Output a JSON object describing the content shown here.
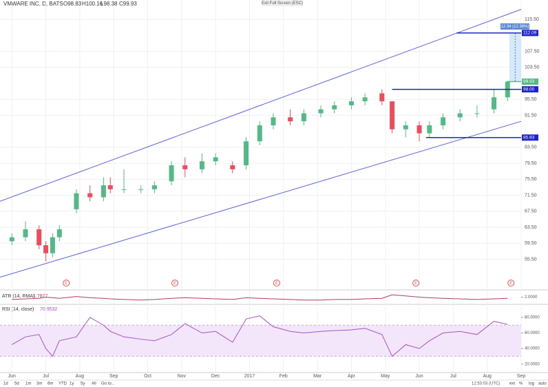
{
  "chart_data": [
    {
      "type": "candlestick",
      "title": "VMWARE INC, D, BATS",
      "ohlc_legend": [
        "O98.83",
        "H100.16",
        "L98.38",
        "C99.93"
      ],
      "x": [
        0,
        0.4,
        0.8,
        1.0,
        1.2,
        1.4,
        1.9,
        2.3,
        2.7,
        2.9,
        3.3,
        3.8,
        4.2,
        4.7,
        5.1,
        5.6,
        6.0,
        6.5,
        6.9,
        7.3,
        7.7,
        8.2,
        8.6,
        9.1,
        9.5,
        10.0,
        10.4,
        10.9,
        11.2,
        11.6,
        12.0,
        12.3,
        12.7,
        13.2,
        13.7,
        14.2,
        14.6
      ],
      "open": [
        60,
        61,
        63,
        59,
        57,
        61,
        68,
        72,
        71,
        74,
        73,
        73,
        73,
        75,
        79,
        78,
        80,
        79,
        79,
        85,
        89,
        91,
        90,
        92,
        93,
        94,
        95,
        97,
        95,
        88,
        89,
        87,
        89,
        91,
        92,
        93,
        96
      ],
      "high": [
        62,
        65,
        64,
        60,
        62,
        64,
        73,
        74,
        76,
        76,
        78,
        74,
        75,
        80,
        81,
        82,
        82,
        80,
        86,
        90,
        92,
        93,
        93,
        94,
        95,
        96,
        97,
        98,
        95,
        90,
        90,
        90,
        92,
        93,
        94,
        98,
        100.16
      ],
      "low": [
        59,
        60,
        58,
        55,
        56,
        60,
        67,
        70,
        70,
        72,
        72,
        72,
        72,
        74,
        76,
        77,
        79,
        77,
        78,
        84,
        88,
        89,
        89,
        91,
        92,
        93,
        94,
        94,
        87,
        86,
        85,
        86,
        88,
        90,
        91,
        92,
        95
      ],
      "close": [
        61,
        63,
        59,
        57,
        61,
        63,
        72,
        71,
        74,
        73,
        73,
        73,
        74,
        79,
        78,
        80,
        81,
        78,
        85,
        89,
        91,
        90,
        92,
        93,
        94,
        95,
        96,
        95,
        88,
        89,
        87,
        89,
        91,
        92,
        92,
        96,
        99.93
      ],
      "up_color": "#53b987",
      "down_color": "#eb4d5c",
      "xlim": [
        -0.35,
        15.0
      ],
      "xticks": [
        {
          "value": 0,
          "label": "Jun"
        },
        {
          "value": 1,
          "label": "Jul"
        },
        {
          "value": 2,
          "label": "Aug"
        },
        {
          "value": 3,
          "label": "Sep"
        },
        {
          "value": 4,
          "label": "Oct"
        },
        {
          "value": 5,
          "label": "Nov"
        },
        {
          "value": 6,
          "label": "Dec"
        },
        {
          "value": 7,
          "label": "2017"
        },
        {
          "value": 8,
          "label": "Feb"
        },
        {
          "value": 9,
          "label": "Mar"
        },
        {
          "value": 10,
          "label": "Apr"
        },
        {
          "value": 11,
          "label": "May"
        },
        {
          "value": 12,
          "label": "Jun"
        },
        {
          "value": 13,
          "label": "Jul"
        },
        {
          "value": 14,
          "label": "Aug"
        },
        {
          "value": 15,
          "label": "Sep"
        }
      ],
      "ylim": [
        48,
        120
      ],
      "yticks": [
        {
          "value": 55.5,
          "label": "55.50"
        },
        {
          "value": 59.5,
          "label": "59.50"
        },
        {
          "value": 63.5,
          "label": "63.50"
        },
        {
          "value": 67.5,
          "label": "67.50"
        },
        {
          "value": 71.5,
          "label": "71.50"
        },
        {
          "value": 75.5,
          "label": "75.50"
        },
        {
          "value": 79.5,
          "label": "79.50"
        },
        {
          "value": 83.5,
          "label": "83.50"
        },
        {
          "value": 91.5,
          "label": "91.50"
        },
        {
          "value": 95.5,
          "label": "95.50"
        },
        {
          "value": 103.5,
          "label": "103.50"
        },
        {
          "value": 107.5,
          "label": "107.50"
        },
        {
          "value": 115.5,
          "label": "115.50"
        }
      ],
      "grid": true,
      "levels": [
        {
          "value": 112.09,
          "label": "112.09",
          "x": [
            13.1,
            15.0
          ],
          "color": "#1e22c8"
        },
        {
          "value": 98,
          "label": "98.00",
          "x": [
            11.2,
            15.0
          ],
          "color": "#1e22c8"
        },
        {
          "value": 85.93,
          "label": "85.93",
          "x": [
            12.2,
            15.0
          ],
          "color": "#1e22c8"
        },
        {
          "value": 99.93,
          "label": "99.93",
          "x": [
            14.6,
            15.0
          ],
          "color": "#53b987"
        }
      ],
      "trendlines": [
        {
          "x": [
            -0.35,
            15.0
          ],
          "y": [
            70,
            118
          ],
          "color": "#5b5fe0"
        },
        {
          "x": [
            -0.35,
            15.0
          ],
          "y": [
            51,
            90
          ],
          "color": "#5b5fe0"
        }
      ],
      "forecast": {
        "label": "12.34 (12.36%)",
        "x": [
          14.65,
          15.0
        ]
      },
      "earnings_x": [
        1.6,
        4.8,
        7.8,
        11.9,
        14.7
      ]
    },
    {
      "type": "line",
      "title": "ATR (14, RMA)",
      "last_value": 1.7877,
      "color": "#b23a5e",
      "x": [
        0,
        0.4,
        0.8,
        1.0,
        1.2,
        1.4,
        1.9,
        2.3,
        2.7,
        2.9,
        3.3,
        3.8,
        4.2,
        4.7,
        5.1,
        5.6,
        6.0,
        6.5,
        6.9,
        7.3,
        7.7,
        8.2,
        8.6,
        9.1,
        9.5,
        10.0,
        10.4,
        10.9,
        11.2,
        11.6,
        12.0,
        12.3,
        12.7,
        13.2,
        13.7,
        14.2,
        14.6
      ],
      "values": [
        1.6,
        1.7,
        1.8,
        2.0,
        1.9,
        1.8,
        2.1,
        1.9,
        1.8,
        1.7,
        1.6,
        1.5,
        1.6,
        1.8,
        1.9,
        1.8,
        1.7,
        1.6,
        1.9,
        1.8,
        1.7,
        1.6,
        1.5,
        1.5,
        1.6,
        1.6,
        1.7,
        1.8,
        2.4,
        2.2,
        2.0,
        1.9,
        1.8,
        1.7,
        1.6,
        1.7,
        1.79
      ],
      "ylim": [
        1.0,
        3.0
      ],
      "yticks": [
        {
          "value": 2,
          "label": "2.0000"
        }
      ]
    },
    {
      "type": "line",
      "title": "RSI (14, close)",
      "last_value": 70.9532,
      "color": "#a352c4",
      "x": [
        0,
        0.4,
        0.8,
        1.0,
        1.2,
        1.4,
        1.9,
        2.3,
        2.7,
        2.9,
        3.3,
        3.8,
        4.2,
        4.7,
        5.1,
        5.6,
        6.0,
        6.5,
        6.9,
        7.3,
        7.7,
        8.2,
        8.6,
        9.1,
        9.5,
        10.0,
        10.4,
        10.9,
        11.2,
        11.6,
        12.0,
        12.3,
        12.7,
        13.2,
        13.7,
        14.2,
        14.6
      ],
      "values": [
        45,
        55,
        58,
        40,
        30,
        50,
        55,
        80,
        70,
        62,
        55,
        52,
        50,
        58,
        72,
        60,
        62,
        48,
        78,
        82,
        68,
        62,
        60,
        62,
        63,
        64,
        66,
        58,
        30,
        45,
        40,
        50,
        60,
        62,
        58,
        75,
        71
      ],
      "ylim": [
        10,
        95
      ],
      "band": [
        30,
        70
      ],
      "yticks": [
        {
          "value": 20,
          "label": "20.0000"
        },
        {
          "value": 40,
          "label": "40.0000"
        },
        {
          "value": 60,
          "label": "60.0000"
        },
        {
          "value": 80,
          "label": "80.0000"
        }
      ]
    }
  ],
  "ui": {
    "exit_fullscreen": "Exit Full Screen (ESC)",
    "ranges": [
      "1d",
      "5d",
      "1m",
      "3m",
      "6m",
      "YTD",
      "1y",
      "5y",
      "All",
      "Go to..."
    ],
    "clock": "12:53:03 (UTC)",
    "scale_options": [
      "ext",
      "%",
      "log",
      "auto"
    ],
    "earnings_icon": "E"
  }
}
